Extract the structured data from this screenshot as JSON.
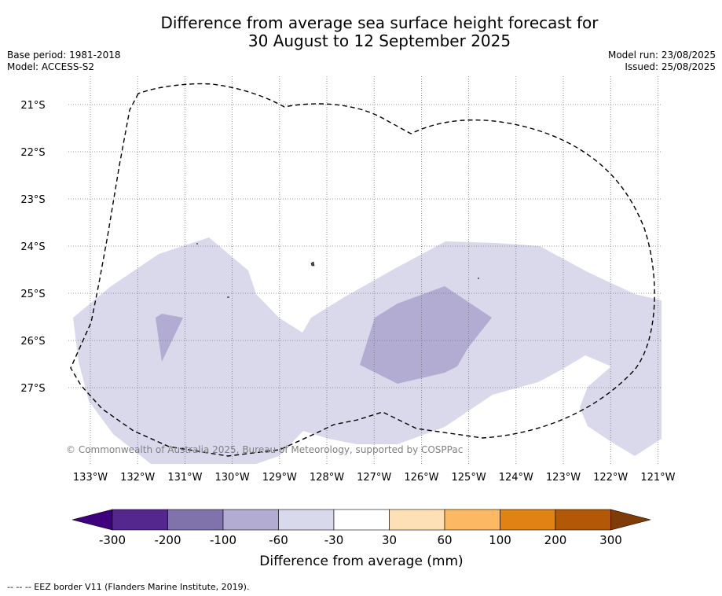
{
  "title": {
    "line1": "Difference from average sea surface height forecast for",
    "line2": "30 August to 12 September 2025"
  },
  "meta_left": {
    "base_period": "Base period: 1981-2018",
    "model": "Model: ACCESS-S2"
  },
  "meta_right": {
    "model_run": "Model run: 23/08/2025",
    "issued": "Issued: 25/08/2025"
  },
  "map": {
    "lon_labels": [
      "133°W",
      "132°W",
      "131°W",
      "130°W",
      "129°W",
      "128°W",
      "127°W",
      "126°W",
      "125°W",
      "124°W",
      "123°W",
      "122°W",
      "121°W"
    ],
    "lat_labels": [
      "21°S",
      "22°S",
      "23°S",
      "24°S",
      "25°S",
      "26°S",
      "27°S"
    ],
    "copyright": "© Commonwealth of Australia 2025, Bureau of Meteorology, supported by COSPPac",
    "fill_colors": {
      "band_-60_-30": "#d9d9eb",
      "band_-100_-60": "#b2abd2"
    }
  },
  "colorbar": {
    "ticks": [
      "-300",
      "-200",
      "-100",
      "-60",
      "-30",
      "30",
      "60",
      "100",
      "200",
      "300"
    ],
    "colors": [
      "#3f007d",
      "#54278f",
      "#8073ac",
      "#b2abd2",
      "#d8daeb",
      "#ffffff",
      "#fee0b6",
      "#fdb863",
      "#e08214",
      "#b35806",
      "#7f3b08"
    ],
    "label": "Difference from average (mm)"
  },
  "footer": "--  --  -- EEZ border V11 (Flanders Marine Institute, 2019)."
}
